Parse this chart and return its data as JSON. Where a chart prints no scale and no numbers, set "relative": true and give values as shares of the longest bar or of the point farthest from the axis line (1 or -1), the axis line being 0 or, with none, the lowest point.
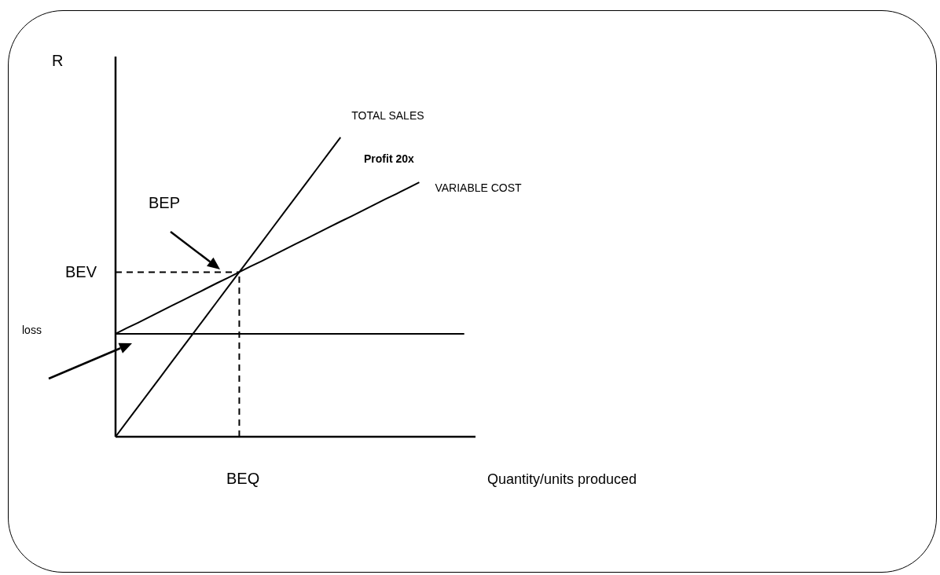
{
  "chart_data": {
    "type": "line",
    "relative": true,
    "xlabel": "Quantity/units produced",
    "categories": [
      null,
      null,
      null,
      null,
      null,
      null,
      null,
      null,
      null,
      null,
      null,
      null,
      null,
      null,
      null,
      null,
      null,
      null,
      null,
      null,
      null,
      null,
      null,
      null,
      null,
      null,
      null,
      null,
      null,
      null,
      null,
      null,
      null
    ],
    "series": [
      {
        "name": "TOTAL SALES",
        "color": "#000000",
        "values": [
          0,
          0.05,
          0.1,
          0.15,
          0.2,
          0.25,
          0.3,
          0.35,
          0.4,
          0.45,
          0.5,
          0.55,
          0.6,
          0.65,
          0.7,
          0.75,
          0.8,
          0.85,
          0.9,
          0.95,
          1,
          null,
          null,
          null,
          null,
          null,
          null,
          null,
          null,
          null,
          null,
          null,
          null
        ]
      },
      {
        "name": "VARIABLE  COST",
        "color": "#000000",
        "values": [
          0.344,
          0.363,
          0.381,
          0.4,
          0.419,
          0.438,
          0.456,
          0.475,
          0.494,
          0.513,
          0.531,
          0.55,
          0.569,
          0.587,
          0.606,
          0.625,
          0.644,
          0.662,
          0.681,
          0.7,
          0.719,
          0.737,
          0.756,
          0.775,
          0.794,
          0.812,
          0.831,
          0.85,
          null,
          null,
          null,
          null,
          null
        ]
      },
      {
        "color": "#000000",
        "values": [
          0.344,
          0.344,
          0.344,
          0.344,
          0.344,
          0.344,
          0.344,
          0.344,
          0.344,
          0.344,
          0.344,
          0.344,
          0.344,
          0.344,
          0.344,
          0.344,
          0.344,
          0.344,
          0.344,
          0.344,
          0.344,
          0.344,
          0.344,
          0.344,
          0.344,
          0.344,
          0.344,
          0.344,
          0.344,
          0.344,
          0.344,
          0.344,
          null
        ]
      }
    ],
    "ref_lines": [
      {
        "axis": "y",
        "value": 0.55,
        "label": "BEV",
        "line_style": "dashed",
        "color": "#000000"
      }
    ],
    "annotations": [
      "Profit 20x",
      "BEP",
      "loss",
      "R",
      "BEQ"
    ]
  }
}
